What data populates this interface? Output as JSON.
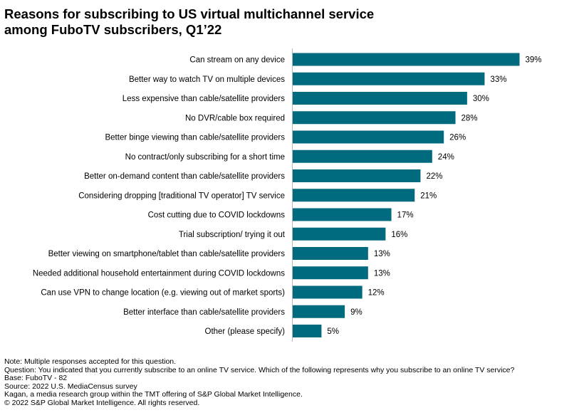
{
  "title_lines": [
    "Reasons for subscribing to US virtual multichannel service",
    "among FuboTV subscribers, Q1’22"
  ],
  "chart_data": {
    "type": "bar",
    "orientation": "horizontal",
    "categories": [
      "Can stream on any device",
      "Better way to watch TV on multiple devices",
      "Less expensive than cable/satellite providers",
      "No DVR/cable box required",
      "Better binge viewing than cable/satellite providers",
      "No contract/only subscribing for a short time",
      "Better on-demand content than cable/satellite providers",
      "Considering dropping [traditional TV operator] TV service",
      "Cost cutting due to COVID lockdowns",
      "Trial subscription/ trying it out",
      "Better viewing on smartphone/tablet than cable/satellite providers",
      "Needed additional household entertainment during COVID lockdowns",
      "Can use VPN to change location (e.g. viewing out of market sports)",
      "Better interface than cable/satellite providers",
      "Other (please specify)"
    ],
    "values": [
      39,
      33,
      30,
      28,
      26,
      24,
      22,
      21,
      17,
      16,
      13,
      13,
      12,
      9,
      5
    ],
    "value_labels": [
      "39%",
      "33%",
      "30%",
      "28%",
      "26%",
      "24%",
      "22%",
      "21%",
      "17%",
      "16%",
      "13%",
      "13%",
      "12%",
      "9%",
      "5%"
    ],
    "unit": "%",
    "xlim": [
      0,
      40
    ],
    "grid": false,
    "legend": "none",
    "bar_color": "#006b7f",
    "axis_color": "#b7b7b7"
  },
  "notes": [
    "Note: Multiple responses accepted for this question.",
    "Question: You indicated that you currently subscribe to an online TV service. Which of the following represents why you subscribe to an online TV service?",
    "Base: FuboTV - 82",
    "Source: 2022 U.S. MediaCensus survey",
    "Kagan, a media research group within the TMT offering of S&P Global Market Intelligence.",
    "© 2022 S&P Global Market Intelligence. All rights reserved."
  ]
}
